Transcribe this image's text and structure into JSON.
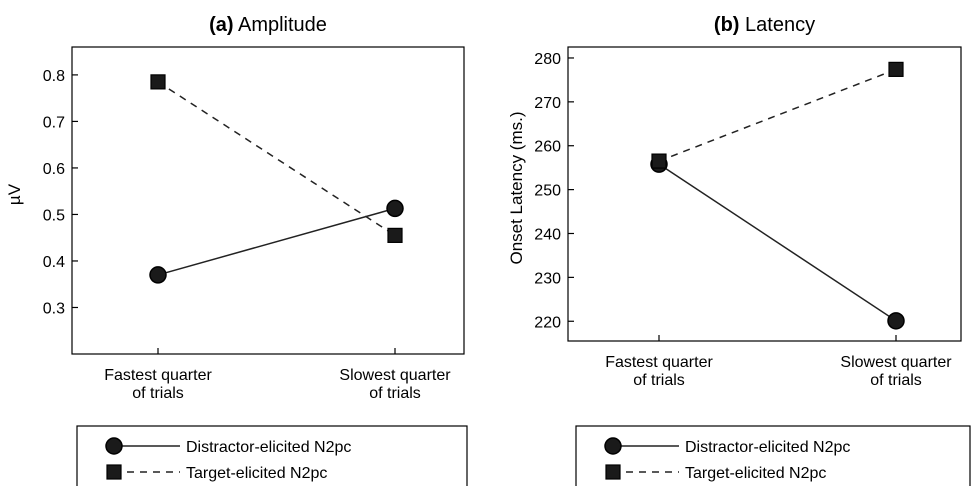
{
  "chart_data": [
    {
      "type": "line",
      "title_prefix": "(a)",
      "title": "Amplitude",
      "xlabel": "",
      "ylabel": "µV",
      "categories": [
        [
          "Fastest quarter",
          "of trials"
        ],
        [
          "Slowest quarter",
          "of trials"
        ]
      ],
      "yticks": [
        "0.3",
        "0.4",
        "0.5",
        "0.6",
        "0.7",
        "0.8"
      ],
      "yticks_values": [
        0.3,
        0.4,
        0.5,
        0.6,
        0.7,
        0.8
      ],
      "ylim": [
        0.2,
        0.86
      ],
      "series": [
        {
          "name": "Distractor-elicited N2pc",
          "values": [
            0.37,
            0.513
          ],
          "marker": "circle",
          "line": "solid"
        },
        {
          "name": "Target-elicited N2pc",
          "values": [
            0.785,
            0.455
          ],
          "marker": "square",
          "line": "dashed"
        }
      ],
      "grid": false,
      "legend": "bottom"
    },
    {
      "type": "line",
      "title_prefix": "(b)",
      "title": "Latency",
      "xlabel": "",
      "ylabel": "Onset Latency (ms.)",
      "categories": [
        [
          "Fastest quarter",
          "of trials"
        ],
        [
          "Slowest quarter",
          "of trials"
        ]
      ],
      "yticks": [
        "220",
        "230",
        "240",
        "250",
        "260",
        "270",
        "280"
      ],
      "yticks_values": [
        220,
        230,
        240,
        250,
        260,
        270,
        280
      ],
      "ylim": [
        215.5,
        282.5
      ],
      "series": [
        {
          "name": "Distractor-elicited N2pc",
          "values": [
            255.8,
            220.1
          ],
          "marker": "circle",
          "line": "solid"
        },
        {
          "name": "Target-elicited N2pc",
          "values": [
            256.5,
            277.4
          ],
          "marker": "square",
          "line": "dashed"
        }
      ],
      "grid": false,
      "legend": "bottom"
    }
  ]
}
